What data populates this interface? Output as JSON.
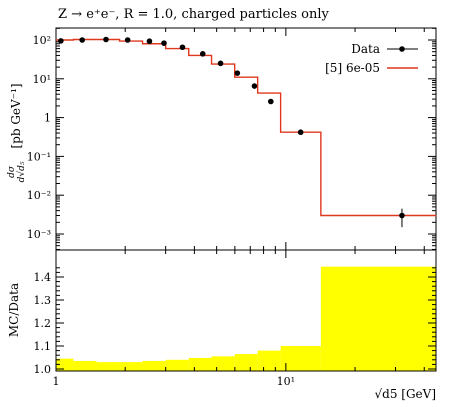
{
  "chart_data": [
    {
      "type": "line",
      "title": "Z → e⁺e⁻, R = 1.0, charged particles only",
      "xlabel": "",
      "ylabel": "dσ/d√d5 [pb GeV⁻¹]",
      "xscale": "log",
      "yscale": "log",
      "xlim": [
        1,
        45
      ],
      "ylim": [
        0.0006,
        200
      ],
      "grid": false,
      "legend_position": "top-right",
      "y_tick_labels": [
        "10²",
        "10¹",
        "1",
        "10⁻¹",
        "10⁻²",
        "10⁻³"
      ],
      "bin_edges": [
        0.95,
        1.19,
        1.5,
        1.89,
        2.38,
        3.0,
        3.78,
        4.75,
        5.99,
        7.54,
        9.49,
        14.2,
        45
      ],
      "series": [
        {
          "name": "Data",
          "style": "points",
          "color": "#000000",
          "x": [
            1.05,
            1.3,
            1.65,
            2.05,
            2.55,
            2.95,
            3.55,
            4.35,
            5.2,
            6.15,
            7.3,
            8.6,
            11.6,
            32.0
          ],
          "y": [
            95,
            100,
            103,
            100,
            93,
            83,
            65,
            44,
            25,
            14,
            6.5,
            2.6,
            0.42,
            0.003
          ],
          "yerr": [
            0,
            0,
            0,
            0,
            0,
            0,
            0,
            0,
            0,
            0,
            0,
            0,
            0,
            0.0015
          ]
        },
        {
          "name": "[5] 6e-05",
          "style": "step",
          "color": "#e0371f",
          "values": [
            100,
            103,
            103,
            94,
            80,
            60,
            40,
            24,
            11,
            4.3,
            0.42,
            0.003
          ]
        }
      ]
    },
    {
      "type": "area",
      "title": "",
      "xlabel": "√d5 [GeV]",
      "ylabel": "MC/Data",
      "xscale": "log",
      "xlim": [
        1,
        45
      ],
      "ylim": [
        1.0,
        1.46
      ],
      "y_tick_labels": [
        "1.0",
        "1.1",
        "1.2",
        "1.3",
        "1.4"
      ],
      "x_tick_labels": [
        "1",
        "10¹"
      ],
      "fill_color": "#ffff00",
      "bin_edges": [
        0.95,
        1.19,
        1.5,
        1.89,
        2.38,
        3.0,
        3.78,
        4.75,
        5.99,
        7.54,
        9.49,
        14.2,
        45
      ],
      "band_upper": [
        1.045,
        1.035,
        1.03,
        1.03,
        1.035,
        1.04,
        1.048,
        1.055,
        1.065,
        1.08,
        1.1,
        1.445
      ],
      "band_lower": [
        1.0,
        1.0,
        1.0,
        1.0,
        1.0,
        1.0,
        1.0,
        1.0,
        1.0,
        1.0,
        1.0,
        1.0
      ]
    }
  ]
}
